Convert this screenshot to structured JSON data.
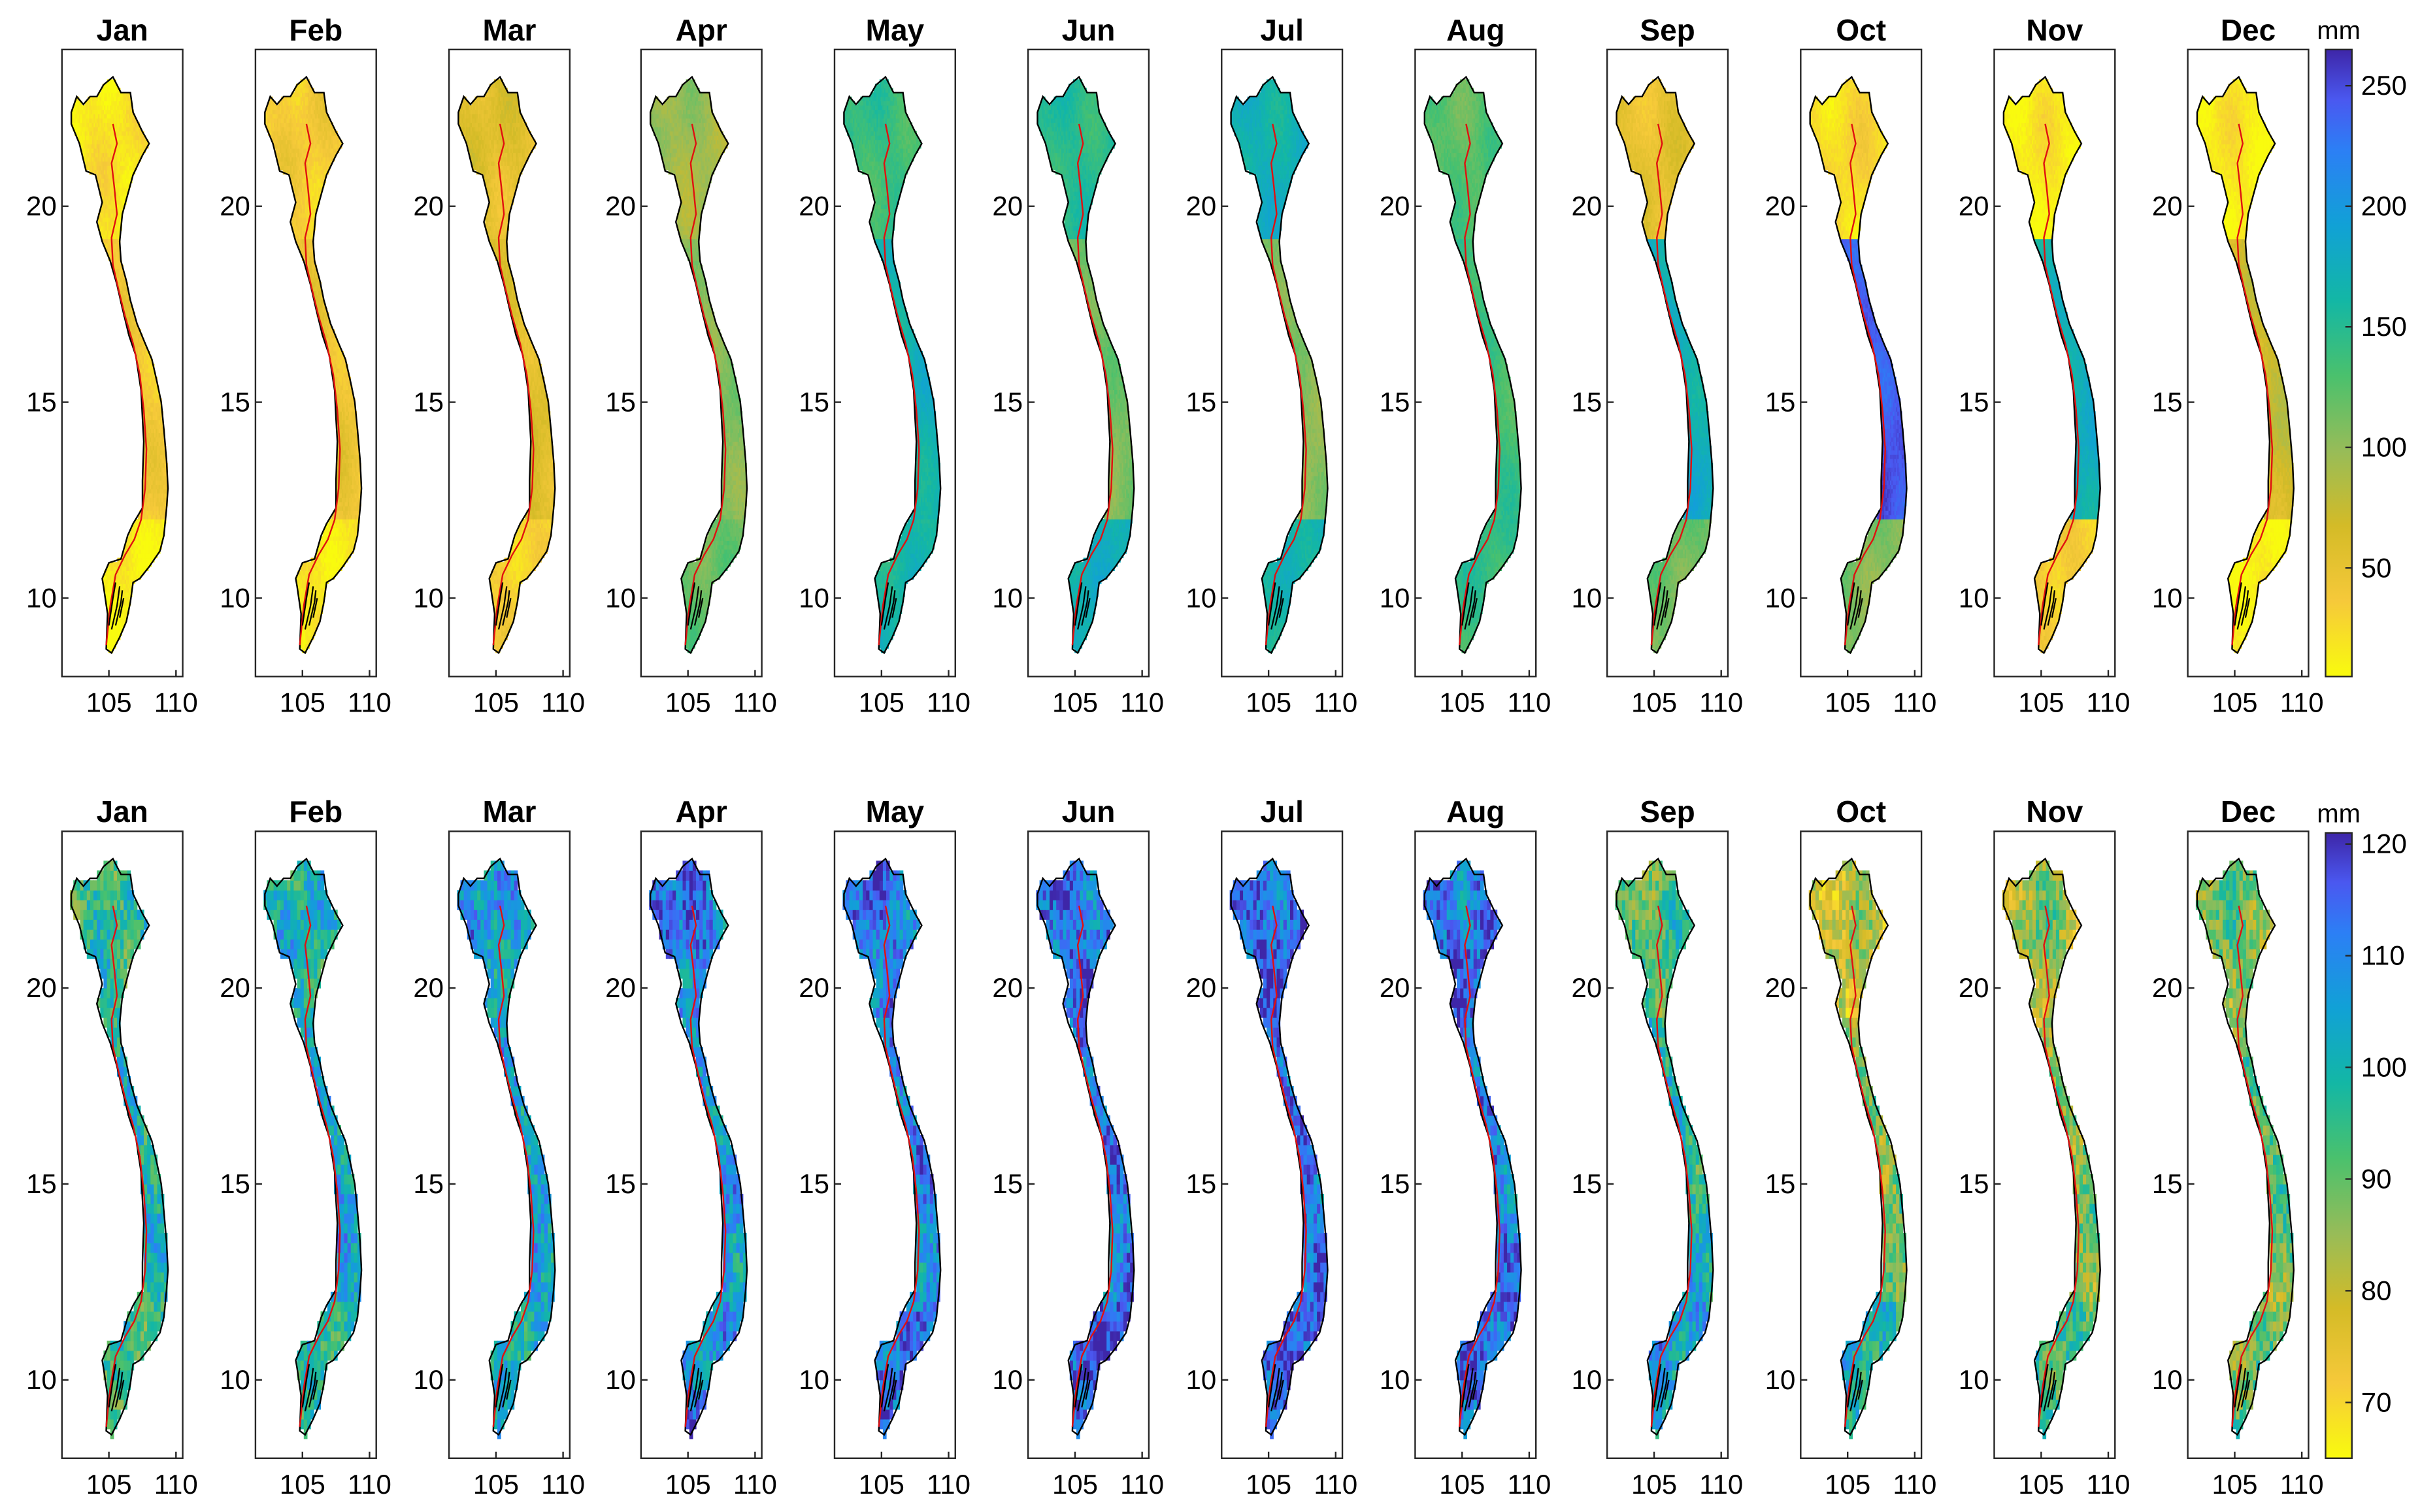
{
  "chart_data": [
    {
      "type": "heatmap",
      "row": "top",
      "panel_titles": [
        "Jan",
        "Feb",
        "Mar",
        "Apr",
        "May",
        "Jun",
        "Jul",
        "Aug",
        "Sep",
        "Oct",
        "Nov",
        "Dec"
      ],
      "x_ticks": [
        "105",
        "110"
      ],
      "y_ticks": [
        "10",
        "15",
        "20"
      ],
      "xlim": [
        101.5,
        110.5
      ],
      "ylim": [
        8,
        24
      ],
      "colorbar": {
        "unit": "mm",
        "ticks": [
          "50",
          "100",
          "150",
          "200",
          "250"
        ],
        "tick_values": [
          50,
          100,
          150,
          200,
          250
        ],
        "range": [
          5,
          265
        ],
        "colormap": "parula"
      },
      "regional_mean_mm": {
        "north": [
          18,
          35,
          55,
          95,
          140,
          150,
          170,
          125,
          50,
          25,
          15,
          15
        ],
        "central": [
          35,
          45,
          60,
          110,
          170,
          110,
          100,
          135,
          175,
          245,
          175,
          70
        ],
        "south": [
          15,
          20,
          35,
          120,
          160,
          170,
          160,
          140,
          115,
          110,
          40,
          15
        ]
      }
    },
    {
      "type": "heatmap",
      "row": "bottom",
      "panel_titles": [
        "Jan",
        "Feb",
        "Mar",
        "Apr",
        "May",
        "Jun",
        "Jul",
        "Aug",
        "Sep",
        "Oct",
        "Nov",
        "Dec"
      ],
      "x_ticks": [
        "105",
        "110"
      ],
      "y_ticks": [
        "10",
        "15",
        "20"
      ],
      "xlim": [
        101.5,
        110.5
      ],
      "ylim": [
        8,
        24
      ],
      "colorbar": {
        "unit": "mm",
        "ticks": [
          "70",
          "80",
          "90",
          "100",
          "110",
          "120"
        ],
        "tick_values": [
          70,
          80,
          90,
          100,
          110,
          120
        ],
        "range": [
          65,
          121
        ],
        "colormap": "parula"
      },
      "regional_mean_mm": {
        "north": [
          95,
          100,
          105,
          112,
          112,
          113,
          114,
          112,
          92,
          80,
          85,
          88
        ],
        "central": [
          98,
          104,
          106,
          108,
          110,
          110,
          112,
          110,
          100,
          90,
          88,
          90
        ],
        "south": [
          96,
          100,
          102,
          108,
          112,
          114,
          114,
          112,
          105,
          100,
          96,
          92
        ]
      }
    }
  ]
}
